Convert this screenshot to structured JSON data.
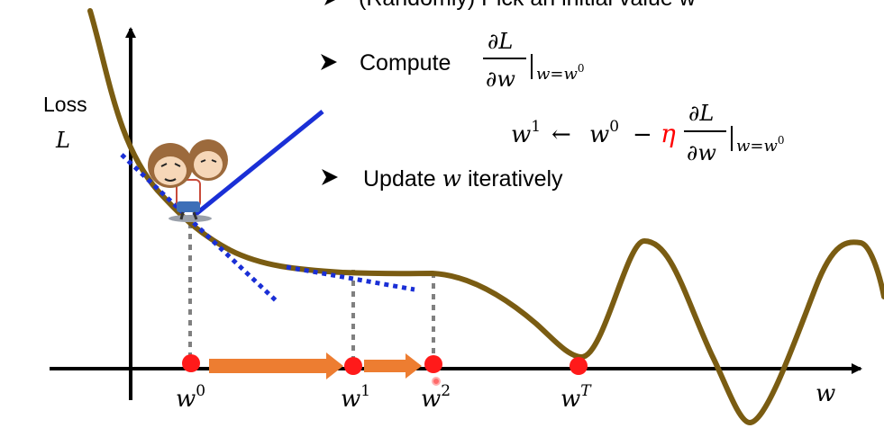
{
  "axes": {
    "y_label_word": "Loss",
    "y_label_symbol": "L",
    "x_label": "w"
  },
  "steps": {
    "pick_initial": "(Randomly) Pick an initial value w",
    "compute_prefix": "Compute",
    "update_prefix": "Update",
    "update_var": "w",
    "update_suffix": "iteratively"
  },
  "formula": {
    "numerator": "∂L",
    "denominator": "∂w",
    "eval_at": "w=w",
    "eval_sup": "0",
    "lhs": "w",
    "lhs_sup": "1",
    "arrow": "←",
    "rhs_var": "w",
    "rhs_sup": "0",
    "minus": "−",
    "eta": "η"
  },
  "points": [
    {
      "label": "w",
      "sup": "0"
    },
    {
      "label": "w",
      "sup": "1"
    },
    {
      "label": "w",
      "sup": "2"
    },
    {
      "label": "w",
      "sup": "T"
    }
  ],
  "colors": {
    "curve": "#7a5c12",
    "tangent_solid": "#1a2fd6",
    "tangent_dotted": "#1a2fd6",
    "point": "#ff1a1a",
    "arrow": "#ed7d31",
    "dashed": "#808080",
    "eta": "#ff0000",
    "bullet": "#000000"
  },
  "icons": [
    "cartoon-walker-icon",
    "bullet-arrow-icon"
  ]
}
